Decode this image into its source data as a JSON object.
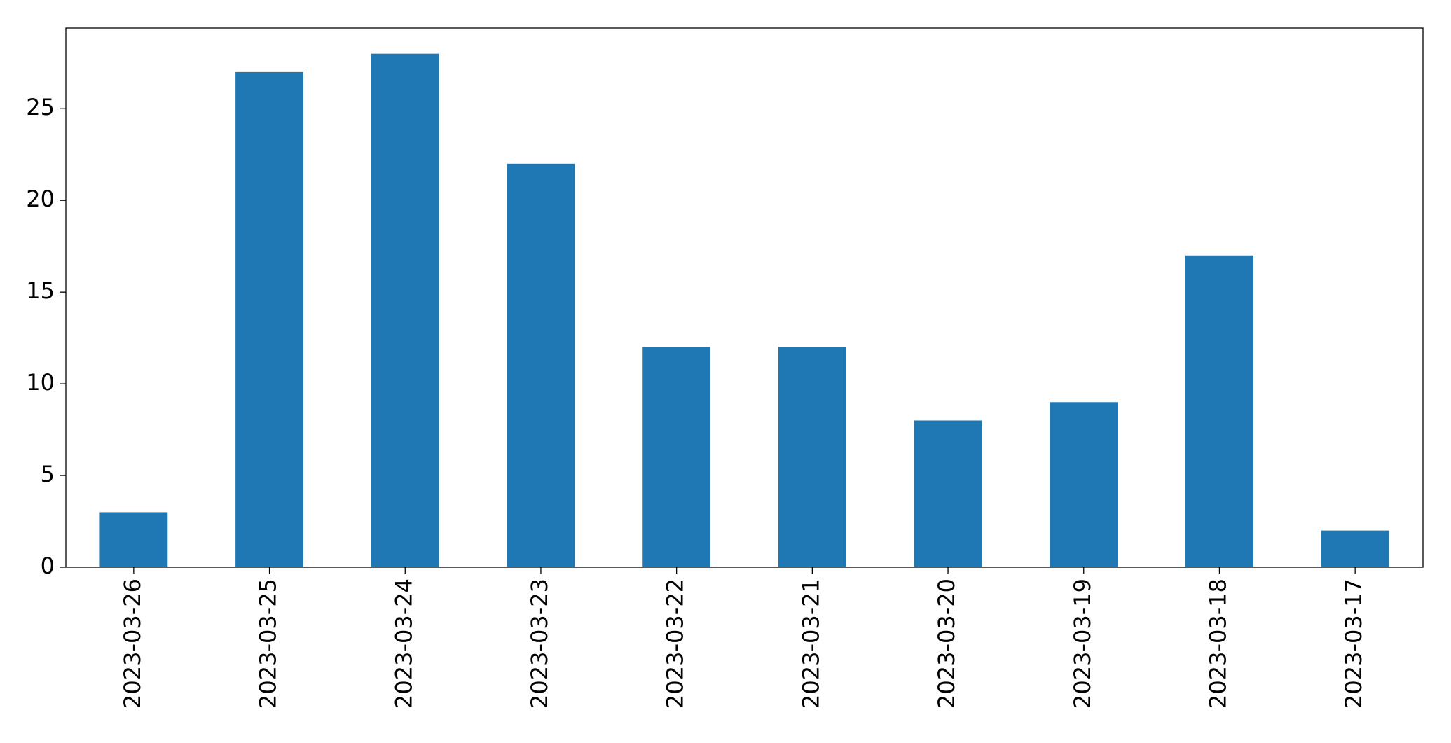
{
  "chart_data": {
    "type": "bar",
    "categories": [
      "2023-03-26",
      "2023-03-25",
      "2023-03-24",
      "2023-03-23",
      "2023-03-22",
      "2023-03-21",
      "2023-03-20",
      "2023-03-19",
      "2023-03-18",
      "2023-03-17"
    ],
    "values": [
      3,
      27,
      28,
      22,
      12,
      12,
      8,
      9,
      17,
      2
    ],
    "color": "#1f77b4",
    "ylim": [
      0,
      29.4
    ],
    "yticks": [
      0,
      5,
      10,
      15,
      20,
      25
    ],
    "grid": false
  }
}
